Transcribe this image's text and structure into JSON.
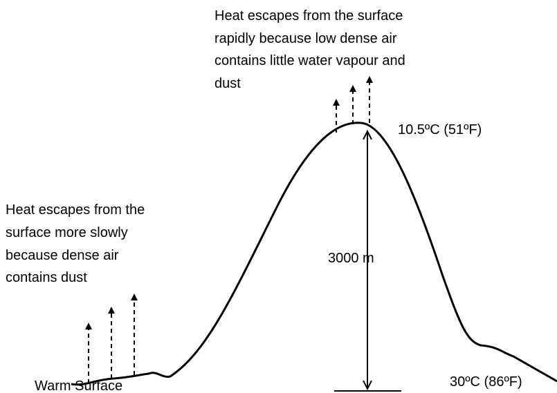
{
  "annotations": {
    "top": {
      "lines": [
        "Heat escapes from the surface",
        "rapidly because low dense air",
        "contains little water vapour and",
        "dust"
      ]
    },
    "left": {
      "lines": [
        "Heat escapes from the",
        "surface more slowly",
        "because dense air",
        "contains dust"
      ]
    }
  },
  "labels": {
    "summit_temperature": "10.5ºC (51ºF)",
    "height": "3000 m",
    "base_temperature": "30ºC (86ºF)",
    "surface": "Warm Surface"
  }
}
